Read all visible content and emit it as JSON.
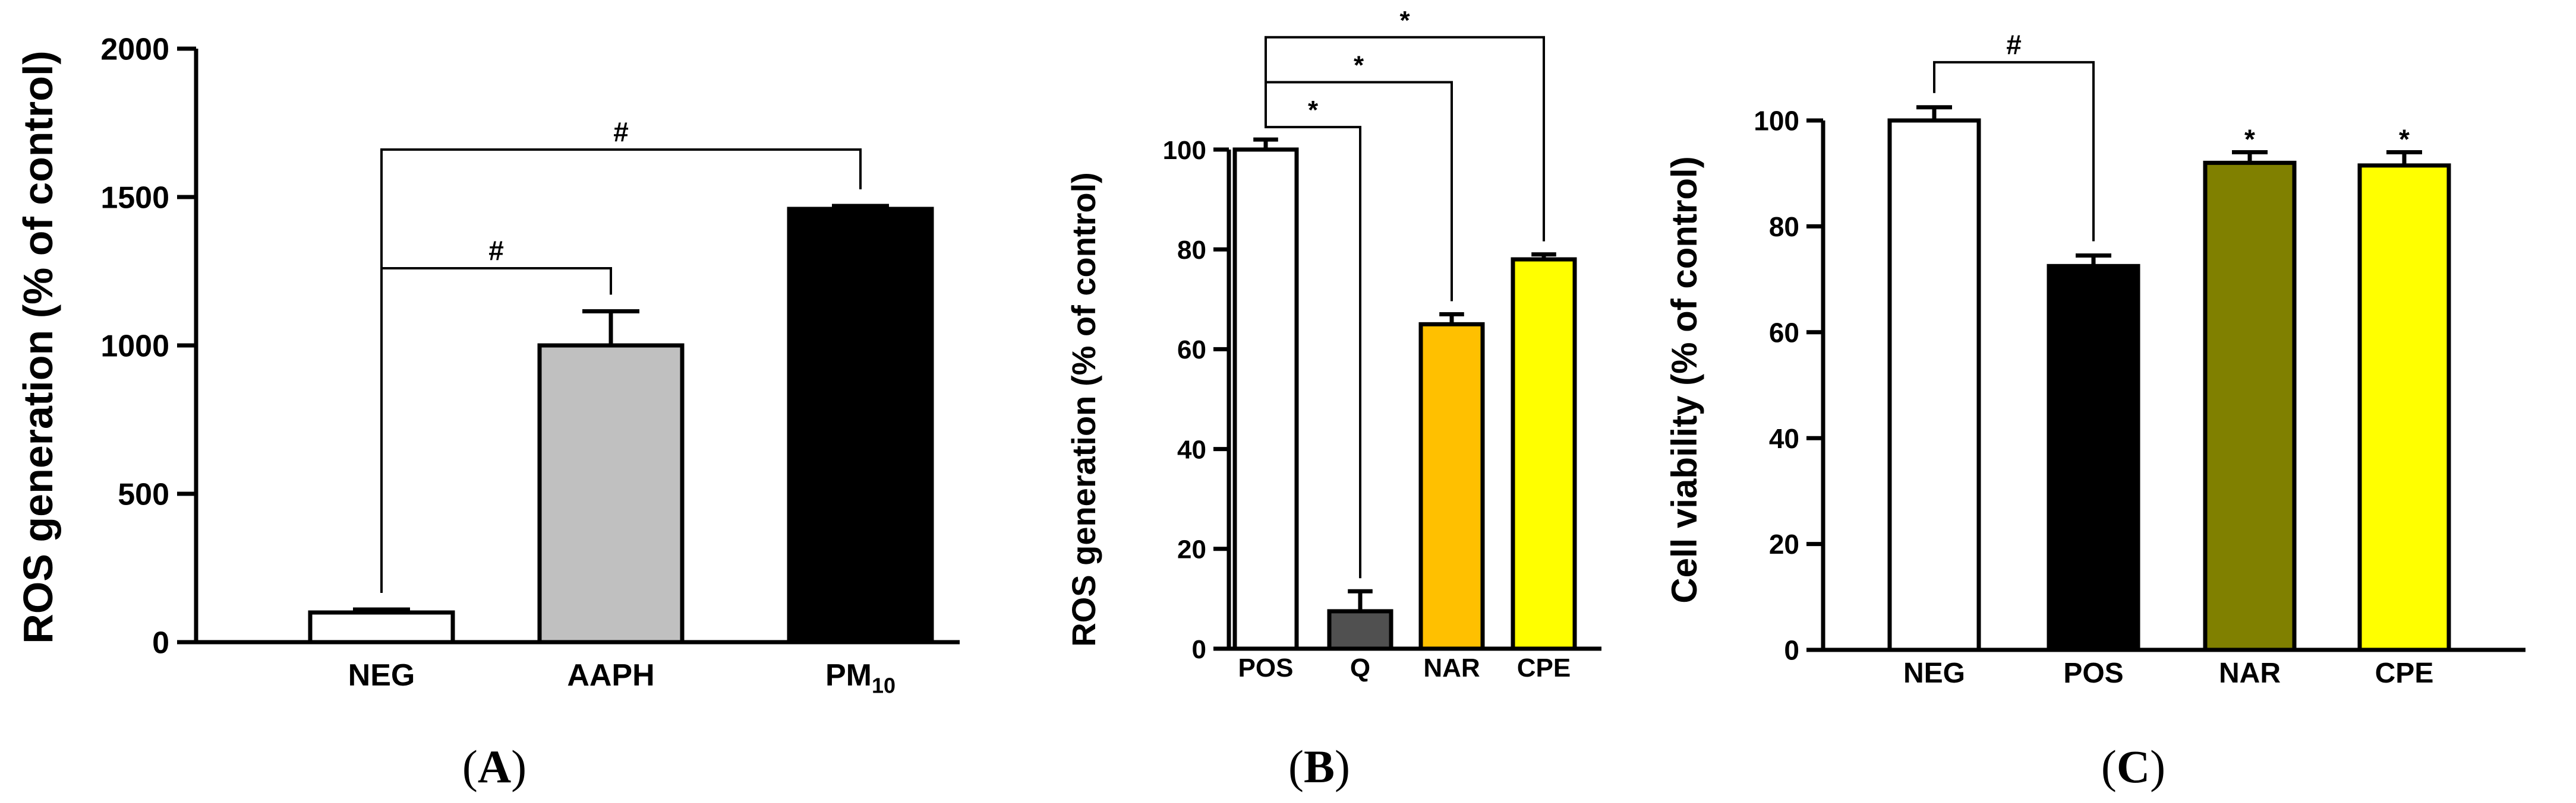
{
  "chart_data": [
    {
      "type": "bar",
      "panel": "A",
      "panel_label": "A",
      "ylabel": "ROS generation (% of control)",
      "xlabel": "",
      "ylim": [
        0,
        2000
      ],
      "yticks": [
        0,
        500,
        1000,
        1500,
        2000
      ],
      "categories": [
        {
          "label": "NEG",
          "sub": ""
        },
        {
          "label": "AAPH",
          "sub": ""
        },
        {
          "label": "PM",
          "sub": "10"
        }
      ],
      "values": [
        100,
        1000,
        1460
      ],
      "errors": [
        10,
        115,
        10
      ],
      "colors": [
        "#ffffff",
        "#c0c0c0",
        "#000000"
      ],
      "comparisons": [
        {
          "from": 0,
          "to": 1,
          "symbol": "#",
          "level": 1260
        },
        {
          "from": 0,
          "to": 2,
          "symbol": "#",
          "level": 1660
        }
      ],
      "significance_marks": []
    },
    {
      "type": "bar",
      "panel": "B",
      "panel_label": "B",
      "ylabel": "ROS generation (% of control)",
      "xlabel": "",
      "ylim": [
        0,
        100
      ],
      "yticks": [
        0,
        20,
        40,
        60,
        80,
        100
      ],
      "categories": [
        {
          "label": "POS",
          "sub": ""
        },
        {
          "label": "Q",
          "sub": ""
        },
        {
          "label": "NAR",
          "sub": ""
        },
        {
          "label": "CPE",
          "sub": ""
        }
      ],
      "values": [
        100,
        7.5,
        65,
        78
      ],
      "errors": [
        2,
        4,
        2,
        1
      ],
      "colors": [
        "#ffffff",
        "#505050",
        "#ffc000",
        "#ffff00"
      ],
      "comparisons": [
        {
          "from": 0,
          "to": 1,
          "symbol": "*",
          "level": 104.5
        },
        {
          "from": 0,
          "to": 2,
          "symbol": "*",
          "level": 113.5
        },
        {
          "from": 0,
          "to": 3,
          "symbol": "*",
          "level": 122.5
        }
      ],
      "significance_marks": []
    },
    {
      "type": "bar",
      "panel": "C",
      "panel_label": "C",
      "ylabel": "Cell viability (% of control)",
      "xlabel": "",
      "ylim": [
        0,
        100
      ],
      "yticks": [
        0,
        20,
        40,
        60,
        80,
        100
      ],
      "categories": [
        {
          "label": "NEG",
          "sub": ""
        },
        {
          "label": "POS",
          "sub": ""
        },
        {
          "label": "NAR",
          "sub": ""
        },
        {
          "label": "CPE",
          "sub": ""
        }
      ],
      "values": [
        100,
        72.5,
        92,
        91.5
      ],
      "errors": [
        2.5,
        2,
        2,
        2.5
      ],
      "colors": [
        "#ffffff",
        "#000000",
        "#808000",
        "#ffff00"
      ],
      "comparisons": [
        {
          "from": 0,
          "to": 1,
          "symbol": "#",
          "level": 111
        }
      ],
      "significance_marks": [
        {
          "bar": 2,
          "symbol": "*"
        },
        {
          "bar": 3,
          "symbol": "*"
        }
      ]
    }
  ]
}
